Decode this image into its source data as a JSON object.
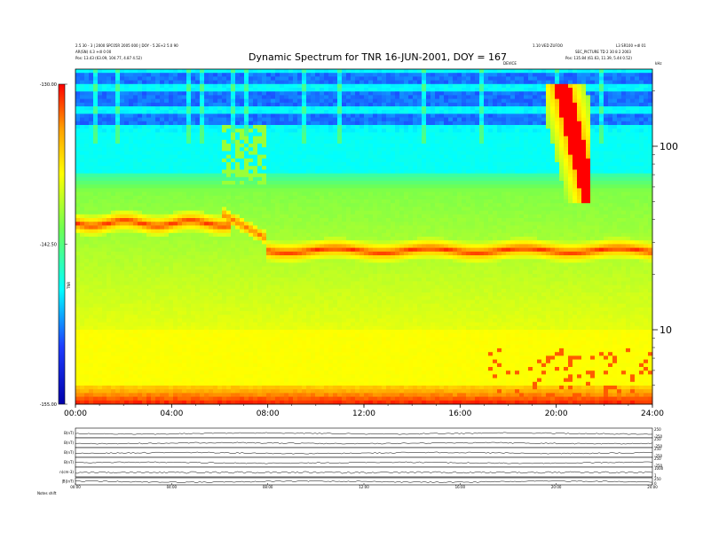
{
  "header": {
    "title": "Dynamic Spectrum for TNR 16-JUN-2001, DOY = 167",
    "meta_left_1": "2.5 30 - 3 | 2000 SPC05R 2005 000 | DOY - 5.2E+2 5.0 90",
    "meta_left_2": "AR(SN) 4.3 +dl 0 00",
    "meta_left_3": "Pos: 13.43 (63.09, 104.77, 4.87 4.52)",
    "meta_right_1": "1.10 VED ZUFOO",
    "meta_right_2": "L3 SR100 +dl 01",
    "meta_right_3": "SEC_PICTURE  TD 2 30 8 2 2003",
    "meta_right_4": "Pos: 135.84 (61.63, 11.39, 5.44 0.52)",
    "meta_right_5": "DEVICE",
    "unit_label": "kHz"
  },
  "chart_data": {
    "type": "heatmap",
    "title": "Dynamic Spectrum for TNR 16-JUN-2001, DOY = 167",
    "xlabel": "",
    "ylabel": "",
    "x_range": [
      0,
      24
    ],
    "x_unit": "hours UT",
    "x_ticks": [
      "00:00",
      "04:00",
      "08:00",
      "12:00",
      "16:00",
      "20:00",
      "24:00"
    ],
    "y_scale": "log",
    "y_ticks": [
      "100",
      "10"
    ],
    "y_unit": "kHz",
    "colorbar": {
      "label": "TNR",
      "range": [
        -155.0,
        -130.0
      ],
      "ticks": [
        "-130.00",
        "-142.50",
        "-155.00"
      ],
      "colors": [
        "#0000aa",
        "#1e3cff",
        "#00ffff",
        "#70ff50",
        "#ffff00",
        "#ffa000",
        "#ff0000"
      ]
    },
    "features": [
      {
        "name": "plasma-line-early",
        "time_range": [
          0,
          6
        ],
        "frequency_khz": 38
      },
      {
        "name": "plasma-line-late",
        "time_range": [
          8,
          24
        ],
        "frequency_khz": 27
      },
      {
        "name": "type-III-burst",
        "time_range": [
          19.5,
          21.5
        ],
        "frequency_khz_range": [
          60,
          220
        ]
      }
    ],
    "stack_panels": [
      {
        "label": "B(nT)",
        "right_ticks": [
          "250",
          "-250"
        ]
      },
      {
        "label": "B(nT)",
        "right_ticks": [
          "250",
          "-250"
        ]
      },
      {
        "label": "B(nT)",
        "right_ticks": [
          "250",
          "-250"
        ]
      },
      {
        "label": "B(nT)",
        "right_ticks": [
          "250",
          "-250"
        ]
      },
      {
        "label": "n(cm-3)",
        "right_ticks": [
          "1000",
          "1"
        ]
      },
      {
        "label": "|B|(nT)",
        "right_ticks": [
          "250",
          "0"
        ]
      }
    ],
    "stack_x_ticks": [
      "00:00",
      "04:00",
      "08:00",
      "12:00",
      "16:00",
      "20:00",
      "24:00"
    ],
    "footer_label": "Notes  shift"
  }
}
